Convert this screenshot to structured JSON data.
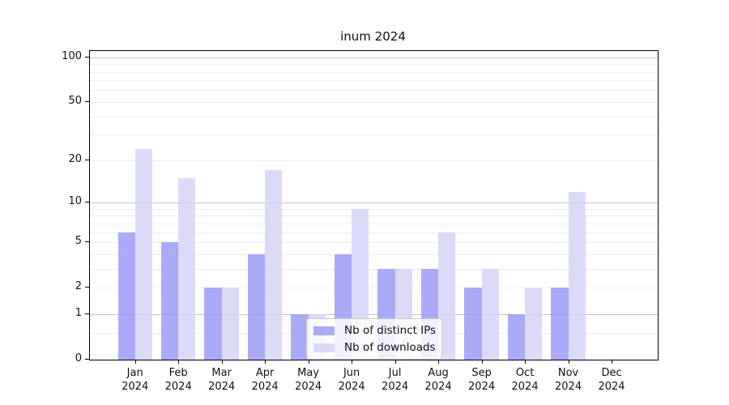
{
  "title": "inum 2024",
  "colors": {
    "ips_bar": "rgba(149,149,246,0.8)",
    "downloads_bar": "rgba(210,210,247,0.8)",
    "ips_solid": "#aaaaf7",
    "downloads_solid": "#dbdbf8",
    "grid_minor": "#ededed",
    "grid_major": "#c3c3c3",
    "axis": "#000000",
    "text": "#111111"
  },
  "legend": {
    "items": [
      {
        "label": "Nb of distinct IPs",
        "color_key": "ips_bar"
      },
      {
        "label": "Nb of downloads",
        "color_key": "downloads_bar"
      }
    ]
  },
  "axes": {
    "y_tick_values": [
      0,
      1,
      2,
      5,
      10,
      20,
      50,
      100
    ],
    "y_major_grid_values": [
      1,
      10,
      100
    ],
    "y_minor_grid_values": [
      0.5,
      2,
      3,
      4,
      5,
      6,
      7,
      8,
      9,
      20,
      30,
      40,
      50,
      60,
      70,
      80,
      90
    ],
    "x_months": [
      "Jan",
      "Feb",
      "Mar",
      "Apr",
      "May",
      "Jun",
      "Jul",
      "Aug",
      "Sep",
      "Oct",
      "Nov",
      "Dec"
    ],
    "x_year": "2024"
  },
  "chart_data": {
    "type": "bar",
    "title": "inum 2024",
    "categories": [
      "Jan 2024",
      "Feb 2024",
      "Mar 2024",
      "Apr 2024",
      "May 2024",
      "Jun 2024",
      "Jul 2024",
      "Aug 2024",
      "Sep 2024",
      "Oct 2024",
      "Nov 2024",
      "Dec 2024"
    ],
    "series": [
      {
        "name": "Nb of distinct IPs",
        "values": [
          6,
          5,
          2,
          4,
          1,
          4,
          3,
          3,
          2,
          1,
          2,
          0
        ]
      },
      {
        "name": "Nb of downloads",
        "values": [
          24,
          15,
          2,
          17,
          1,
          9,
          3,
          6,
          3,
          2,
          12,
          0
        ]
      }
    ],
    "xlabel": "",
    "ylabel": "",
    "yscale": "log1p",
    "yticks": [
      0,
      1,
      2,
      5,
      10,
      20,
      50,
      100
    ],
    "ylim": [
      0,
      110
    ],
    "grid": true,
    "legend_position": "lower center, inside axes"
  }
}
